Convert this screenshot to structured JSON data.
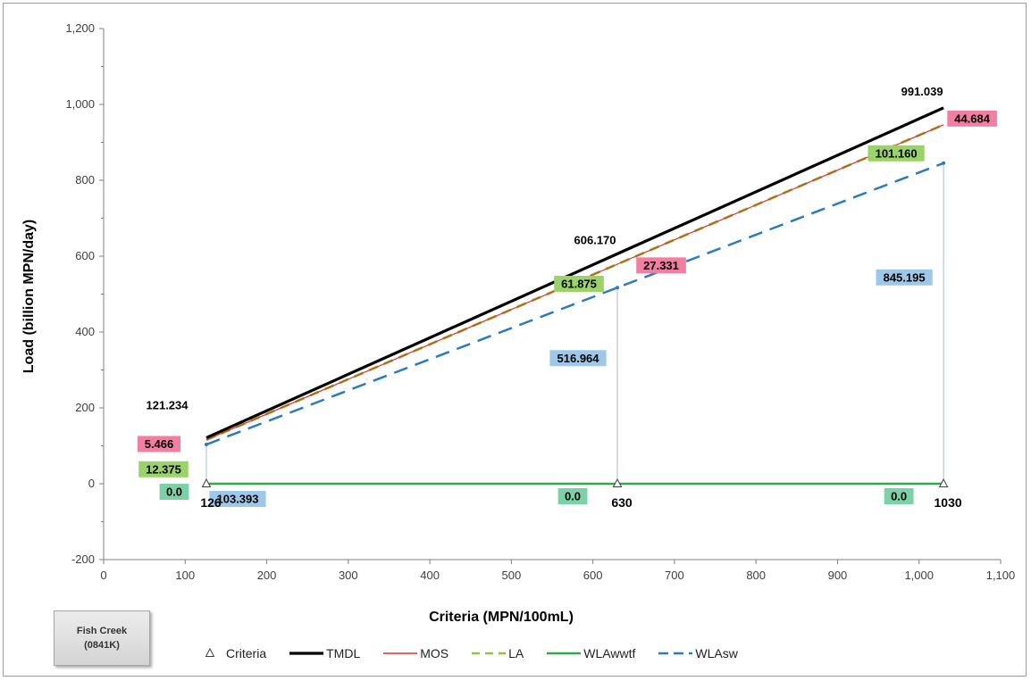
{
  "site": {
    "line1": "Fish Creek",
    "line2": "(0841K)"
  },
  "legend": [
    {
      "key": "criteria",
      "label": "Criteria"
    },
    {
      "key": "tmdl",
      "label": "TMDL"
    },
    {
      "key": "mos",
      "label": "MOS"
    },
    {
      "key": "la",
      "label": "LA"
    },
    {
      "key": "wlawwtf",
      "label": "WLAwwtf"
    },
    {
      "key": "wlasw",
      "label": "WLAsw"
    }
  ],
  "colors": {
    "tmdl": "#000000",
    "mos": "#e03030",
    "la": "#8cc63f",
    "wlawwtf": "#2eaa4a",
    "wlasw": "#2b7bbf",
    "mos_box": "#f07fa2",
    "la_box": "#9bd36a",
    "wwtf_box": "#7dd1a6",
    "wlasw_box": "#9ec8ea",
    "drop": "#9fc0dd"
  },
  "chart_data": {
    "type": "line",
    "xlabel": "Criteria (MPN/100mL)",
    "ylabel": "Load (billion MPN/day)",
    "xlim": [
      0,
      1100
    ],
    "ylim": [
      -200,
      1200
    ],
    "xticks": [
      "0",
      "100",
      "200",
      "300",
      "400",
      "500",
      "600",
      "700",
      "800",
      "900",
      "1,000",
      "1,100"
    ],
    "yticks": [
      "-200",
      "0",
      "200",
      "400",
      "600",
      "800",
      "1,000",
      "1,200"
    ],
    "x": [
      126,
      630,
      1030
    ],
    "criteria_labels": [
      "126",
      "630",
      "1030"
    ],
    "series": [
      {
        "name": "TMDL",
        "key": "tmdl",
        "values": [
          121.234,
          606.17,
          991.039
        ]
      },
      {
        "name": "MOS",
        "key": "mos",
        "values": [
          115.768,
          578.839,
          946.355
        ]
      },
      {
        "name": "LA",
        "key": "la",
        "values": [
          115.768,
          578.839,
          946.355
        ]
      },
      {
        "name": "WLAwwtf",
        "key": "wlawwtf",
        "values": [
          0,
          0,
          0
        ]
      },
      {
        "name": "WLAsw",
        "key": "wlasw",
        "values": [
          103.393,
          516.964,
          845.195
        ]
      }
    ],
    "annotations": {
      "tmdl": [
        "121.234",
        "606.170",
        "991.039"
      ],
      "mos": [
        "5.466",
        "27.331",
        "44.684"
      ],
      "la": [
        "12.375",
        "61.875",
        "101.160"
      ],
      "wwtf": [
        "0.0",
        "0.0",
        "0.0"
      ],
      "wlasw": [
        "103.393",
        "516.964",
        "845.195"
      ]
    },
    "grid": false
  }
}
